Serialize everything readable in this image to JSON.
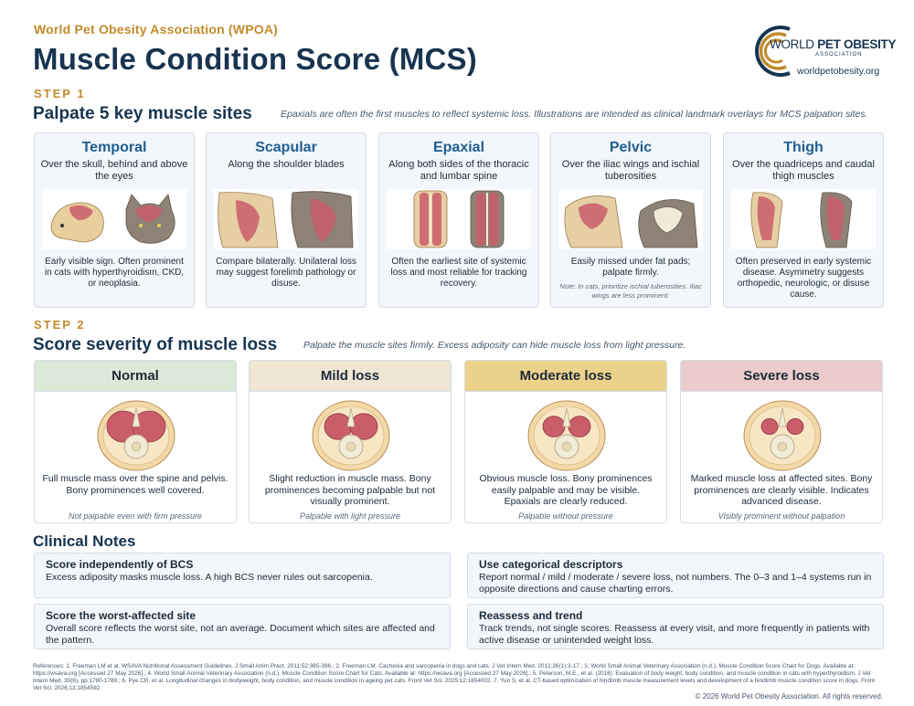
{
  "header": {
    "org": "World Pet Obesity Association (WPOA)",
    "title": "Muscle Condition Score (MCS)"
  },
  "logo": {
    "line1_light": "WORLD ",
    "line1_bold": "PET OBESITY",
    "line2": "ASSOCIATION",
    "url": "worldpetobesity.org",
    "colors": {
      "navy": "#173450",
      "gold": "#c28b2c"
    }
  },
  "step1": {
    "label": "STEP 1",
    "heading": "Palpate 5 key muscle sites",
    "note": "Epaxials are often the first muscles to reflect systemic loss. Illustrations are intended as clinical landmark overlays for MCS palpation sites.",
    "sites": [
      {
        "name": "Temporal",
        "desc": "Over the skull, behind and above the eyes",
        "foot": "Early visible sign. Often prominent in cats with hyperthyroidism, CKD, or neoplasia.",
        "small": ""
      },
      {
        "name": "Scapular",
        "desc": "Along the shoulder blades",
        "foot": "Compare bilaterally. Unilateral loss may suggest forelimb pathology or disuse.",
        "small": ""
      },
      {
        "name": "Epaxial",
        "desc": "Along both sides of the thoracic and lumbar spine",
        "foot": "Often the earliest site of systemic loss and most reliable for tracking recovery.",
        "small": ""
      },
      {
        "name": "Pelvic",
        "desc": "Over the iliac wings and ischial tuberosities",
        "foot": "Easily missed under fat pads; palpate firmly.",
        "small": "Note: In cats, prioritize ischial tuberosities. Iliac wings are less prominent."
      },
      {
        "name": "Thigh",
        "desc": "Over the quadriceps and caudal thigh muscles",
        "foot": "Often preserved in early systemic disease. Asymmetry suggests orthopedic, neurologic, or disuse cause.",
        "small": ""
      }
    ]
  },
  "step2": {
    "label": "STEP 2",
    "heading": "Score severity of muscle loss",
    "note": "Palpate the muscle sites firmly. Excess adiposity can hide muscle loss from light pressure.",
    "levels": [
      {
        "name": "Normal",
        "color": "#dce8d8",
        "muscle": 1.0,
        "desc": "Full muscle mass over the spine and pelvis. Bony prominences well covered.",
        "foot": "Not palpable even with firm pressure"
      },
      {
        "name": "Mild loss",
        "color": "#efe7d3",
        "muscle": 0.8,
        "desc": "Slight reduction in muscle mass. Bony prominences becoming palpable but not visually prominent.",
        "foot": "Palpable with light pressure"
      },
      {
        "name": "Moderate loss",
        "color": "#ecd18a",
        "muscle": 0.6,
        "desc": "Obvious muscle loss. Bony prominences easily palpable and may be visible. Epaxials are clearly reduced.",
        "foot": "Palpable without pressure"
      },
      {
        "name": "Severe loss",
        "color": "#ebcbcb",
        "muscle": 0.4,
        "desc": "Marked muscle loss at affected sites. Bony prominences are clearly visible. Indicates advanced disease.",
        "foot": "Visibly prominent without palpation"
      }
    ]
  },
  "notes": {
    "title": "Clinical Notes",
    "items": [
      {
        "heading": "Score independently of BCS",
        "body": "Excess adiposity masks muscle loss. A high BCS never rules out sarcopenia."
      },
      {
        "heading": "Use categorical descriptors",
        "body": "Report normal / mild / moderate / severe loss, not numbers. The 0–3 and 1–4 systems run in opposite directions and cause charting errors."
      },
      {
        "heading": "Score the worst-affected site",
        "body": "Overall score reflects the worst site, not an average. Document which sites are affected and the pattern."
      },
      {
        "heading": "Reassess and trend",
        "body": "Track trends, not single scores. Reassess at every visit, and more frequently in patients with active disease or unintended weight loss."
      }
    ]
  },
  "footer": {
    "references": "References: 1. Freeman LM et al. WSAVA Nutritional Assessment Guidelines. J Small Anim Pract. 2011;52:385-396.; 2. Freeman LM. Cachexia and sarcopenia in dogs and cats. J Vet Intern Med. 2012;26(1):3-17.; 3. World Small Animal Veterinary Association (n.d.). Muscle Condition Score Chart for Dogs. Available at: https://wsava.org [Accessed 27 May 2026].; 4. World Small Animal Veterinary Association (n.d.). Muscle Condition Score Chart for Cats. Available at: https://wsava.org [Accessed 27 May 2026].; 5. Peterson, M.E., et al. (2016). Evaluation of body weight, body condition, and muscle condition in cats with hyperthyroidism. J Vet Intern Med, 30(6), pp.1780-1789.; 6. Pye CR, et al. Longitudinal changes in bodyweight, body condition, and muscle condition in ageing pet cats. Front Vet Sci. 2025;12:1654002. 7. Yun S, et al. CT-based optimization of hindlimb muscle measurement levels and development of a hindlimb muscle condition score in dogs. Front Vet Sci. 2026;13:1854592.",
    "copyright": "© 2026 World Pet Obesity Association. All rights reserved."
  }
}
